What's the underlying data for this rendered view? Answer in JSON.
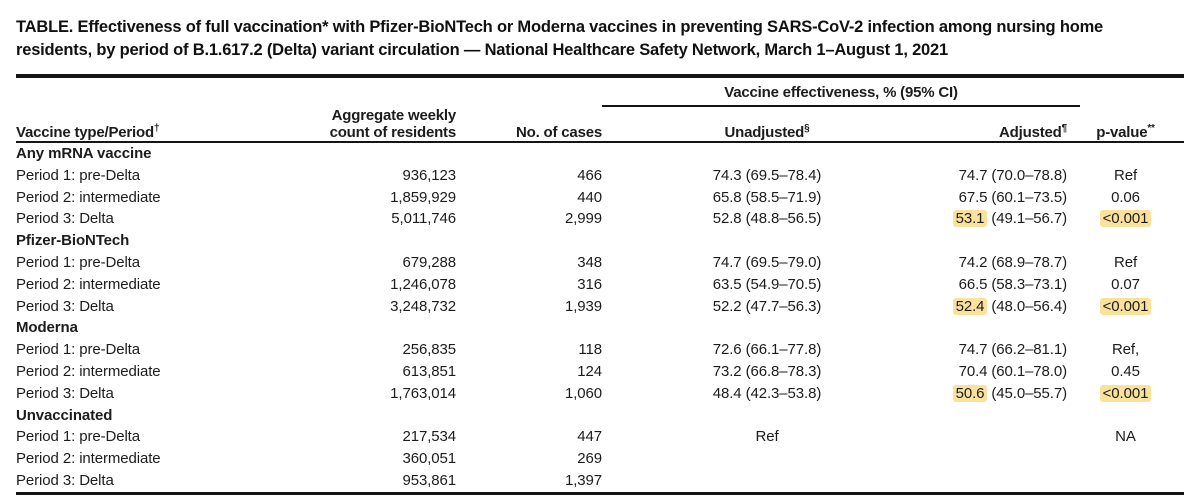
{
  "table": {
    "title": {
      "line1": "TABLE. Effectiveness of full vaccination* with Pfizer-BioNTech or Moderna vaccines in preventing SARS-CoV-2 infection among nursing home",
      "line2": "residents, by period of B.1.617.2 (Delta) variant circulation — National Healthcare Safety Network, March 1–August 1, 2021"
    },
    "header": {
      "col_vaccine": "Vaccine type/Period",
      "col_vaccine_mark": "†",
      "col_count_line1": "Aggregate weekly",
      "col_count_line2": "count of residents",
      "col_cases": "No. of cases",
      "spanner": "Vaccine effectiveness, % (95% CI)",
      "col_unadjusted": "Unadjusted",
      "col_unadjusted_mark": "§",
      "col_adjusted": "Adjusted",
      "col_adjusted_mark": "¶",
      "col_pvalue": "p-value",
      "col_pvalue_mark": "**"
    },
    "highlight_color": "#fae29c",
    "groups": [
      {
        "name": "Any mRNA vaccine",
        "rows": [
          {
            "period": "Period 1: pre-Delta",
            "count": "936,123",
            "cases": "466",
            "unadj": "74.3 (69.5–78.4)",
            "adj_ve": "74.7",
            "adj_ci": "(70.0–78.8)",
            "p": "Ref"
          },
          {
            "period": "Period 2: intermediate",
            "count": "1,859,929",
            "cases": "440",
            "unadj": "65.8 (58.5–71.9)",
            "adj_ve": "67.5",
            "adj_ci": "(60.1–73.5)",
            "p": "0.06"
          },
          {
            "period": "Period 3: Delta",
            "count": "5,011,746",
            "cases": "2,999",
            "unadj": "52.8 (48.8–56.5)",
            "adj_ve": "53.1",
            "adj_ci": "(49.1–56.7)",
            "p": "<0.001"
          }
        ]
      },
      {
        "name": "Pfizer-BioNTech",
        "rows": [
          {
            "period": "Period 1: pre-Delta",
            "count": "679,288",
            "cases": "348",
            "unadj": "74.7 (69.5–79.0)",
            "adj_ve": "74.2",
            "adj_ci": "(68.9–78.7)",
            "p": "Ref"
          },
          {
            "period": "Period 2: intermediate",
            "count": "1,246,078",
            "cases": "316",
            "unadj": "63.5 (54.9–70.5)",
            "adj_ve": "66.5",
            "adj_ci": "(58.3–73.1)",
            "p": "0.07"
          },
          {
            "period": "Period 3: Delta",
            "count": "3,248,732",
            "cases": "1,939",
            "unadj": "52.2 (47.7–56.3)",
            "adj_ve": "52.4",
            "adj_ci": "(48.0–56.4)",
            "p": "<0.001"
          }
        ]
      },
      {
        "name": "Moderna",
        "rows": [
          {
            "period": "Period 1: pre-Delta",
            "count": "256,835",
            "cases": "118",
            "unadj": "72.6 (66.1–77.8)",
            "adj_ve": "74.7",
            "adj_ci": "(66.2–81.1)",
            "p": "Ref,"
          },
          {
            "period": "Period 2: intermediate",
            "count": "613,851",
            "cases": "124",
            "unadj": "73.2 (66.8–78.3)",
            "adj_ve": "70.4",
            "adj_ci": "(60.1–78.0)",
            "p": "0.45"
          },
          {
            "period": "Period 3: Delta",
            "count": "1,763,014",
            "cases": "1,060",
            "unadj": "48.4 (42.3–53.8)",
            "adj_ve": "50.6",
            "adj_ci": "(45.0–55.7)",
            "p": "<0.001"
          }
        ]
      },
      {
        "name": "Unvaccinated",
        "rows": [
          {
            "period": "Period 1: pre-Delta",
            "count": "217,534",
            "cases": "447",
            "unadj": "Ref",
            "adj_ve": "",
            "adj_ci": "",
            "p": "NA"
          },
          {
            "period": "Period 2: intermediate",
            "count": "360,051",
            "cases": "269",
            "unadj": "",
            "adj_ve": "",
            "adj_ci": "",
            "p": ""
          },
          {
            "period": "Period 3: Delta",
            "count": "953,861",
            "cases": "1,397",
            "unadj": "",
            "adj_ve": "",
            "adj_ci": "",
            "p": ""
          }
        ]
      }
    ]
  },
  "chart_data": {
    "type": "table",
    "title": "TABLE. Effectiveness of full vaccination* with Pfizer-BioNTech or Moderna vaccines in preventing SARS-CoV-2 infection among nursing home residents, by period of B.1.617.2 (Delta) variant circulation — National Healthcare Safety Network, March 1–August 1, 2021",
    "columns": [
      "Vaccine type/Period†",
      "Aggregate weekly count of residents",
      "No. of cases",
      "Vaccine effectiveness % (95% CI): Unadjusted§",
      "Vaccine effectiveness % (95% CI): Adjusted¶",
      "p-value**"
    ],
    "rows": [
      [
        "Any mRNA vaccine",
        "",
        "",
        "",
        "",
        ""
      ],
      [
        "Period 1: pre-Delta",
        "936,123",
        "466",
        "74.3 (69.5–78.4)",
        "74.7 (70.0–78.8)",
        "Ref"
      ],
      [
        "Period 2: intermediate",
        "1,859,929",
        "440",
        "65.8 (58.5–71.9)",
        "67.5 (60.1–73.5)",
        "0.06"
      ],
      [
        "Period 3: Delta",
        "5,011,746",
        "2,999",
        "52.8 (48.8–56.5)",
        "53.1 (49.1–56.7)",
        "<0.001"
      ],
      [
        "Pfizer-BioNTech",
        "",
        "",
        "",
        "",
        ""
      ],
      [
        "Period 1: pre-Delta",
        "679,288",
        "348",
        "74.7 (69.5–79.0)",
        "74.2 (68.9–78.7)",
        "Ref"
      ],
      [
        "Period 2: intermediate",
        "1,246,078",
        "316",
        "63.5 (54.9–70.5)",
        "66.5 (58.3–73.1)",
        "0.07"
      ],
      [
        "Period 3: Delta",
        "3,248,732",
        "1,939",
        "52.2 (47.7–56.3)",
        "52.4 (48.0–56.4)",
        "<0.001"
      ],
      [
        "Moderna",
        "",
        "",
        "",
        "",
        ""
      ],
      [
        "Period 1: pre-Delta",
        "256,835",
        "118",
        "72.6 (66.1–77.8)",
        "74.7 (66.2–81.1)",
        "Ref,"
      ],
      [
        "Period 2: intermediate",
        "613,851",
        "124",
        "73.2 (66.8–78.3)",
        "70.4 (60.1–78.0)",
        "0.45"
      ],
      [
        "Period 3: Delta",
        "1,763,014",
        "1,060",
        "48.4 (42.3–53.8)",
        "50.6 (45.0–55.7)",
        "<0.001"
      ],
      [
        "Unvaccinated",
        "",
        "",
        "",
        "",
        ""
      ],
      [
        "Period 1: pre-Delta",
        "217,534",
        "447",
        "Ref",
        "",
        "NA"
      ],
      [
        "Period 2: intermediate",
        "360,051",
        "269",
        "",
        "",
        ""
      ],
      [
        "Period 3: Delta",
        "953,861",
        "1,397",
        "",
        "",
        ""
      ]
    ],
    "highlighted_values": [
      "Adjusted VE 53.1",
      "Adjusted VE 52.4",
      "Adjusted VE 50.6",
      "p-value <0.001 (×3)"
    ]
  }
}
